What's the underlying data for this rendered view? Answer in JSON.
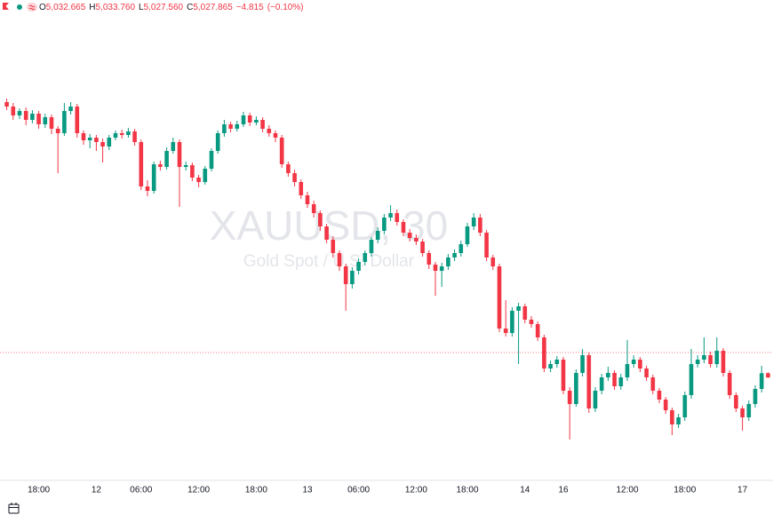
{
  "header": {
    "open_label": "O",
    "open": "5,032.665",
    "high_label": "H",
    "high": "5,033.760",
    "low_label": "L",
    "low": "5,027.560",
    "close_label": "C",
    "close": "5,027.865",
    "change": "−4.815",
    "change_pct": "(−0.10%)"
  },
  "watermark": {
    "symbol": "XAUUSD, 30",
    "description": "Gold Spot / U.S. Dollar"
  },
  "chart_data": {
    "type": "candlestick",
    "up_color": "#089981",
    "down_color": "#f23645",
    "ylim": [
      4913,
      5453
    ],
    "reference_line": 5056,
    "reference_color": "#f23645",
    "categories": [
      null,
      null,
      null,
      null,
      null,
      "18:00",
      null,
      null,
      null,
      null,
      null,
      null,
      null,
      null,
      "12",
      null,
      null,
      null,
      null,
      null,
      null,
      "06:00",
      null,
      null,
      null,
      null,
      null,
      null,
      null,
      null,
      "12:00",
      null,
      null,
      null,
      null,
      null,
      null,
      null,
      null,
      "18:00",
      null,
      null,
      null,
      null,
      null,
      null,
      null,
      "13",
      null,
      null,
      null,
      null,
      null,
      null,
      null,
      "06:00",
      null,
      null,
      null,
      null,
      null,
      null,
      null,
      null,
      "12:00",
      null,
      null,
      null,
      null,
      null,
      null,
      null,
      "18:00",
      null,
      null,
      null,
      null,
      null,
      null,
      null,
      null,
      "14",
      null,
      null,
      null,
      null,
      null,
      "16",
      null,
      null,
      null,
      null,
      null,
      null,
      null,
      null,
      null,
      "12:00",
      null,
      null,
      null,
      null,
      null,
      null,
      null,
      null,
      "18:00",
      null,
      null,
      null,
      null,
      null,
      null,
      null,
      null,
      "17",
      null,
      null,
      null,
      null
    ],
    "open": [
      5338,
      5333,
      5323,
      5328,
      5318,
      5325,
      5313,
      5321,
      5308,
      5303,
      5328,
      5333,
      5303,
      5295,
      5298,
      5293,
      5288,
      5298,
      5303,
      5301,
      5305,
      5293,
      5243,
      5238,
      5268,
      5265,
      5283,
      5293,
      5265,
      5267,
      5253,
      5248,
      5263,
      5283,
      5303,
      5313,
      5308,
      5313,
      5323,
      5315,
      5318,
      5308,
      5303,
      5298,
      5268,
      5258,
      5248,
      5233,
      5223,
      5213,
      5198,
      5183,
      5168,
      5153,
      5133,
      5148,
      5158,
      5168,
      5183,
      5193,
      5208,
      5213,
      5203,
      5191,
      5185,
      5181,
      5168,
      5155,
      5148,
      5153,
      5163,
      5168,
      5178,
      5198,
      5208,
      5191,
      5163,
      5153,
      5083,
      5078,
      5103,
      5108,
      5093,
      5088,
      5073,
      5038,
      5043,
      5048,
      5013,
      4998,
      5033,
      5053,
      4993,
      5013,
      5028,
      5033,
      5018,
      5028,
      5043,
      5048,
      5038,
      5028,
      5013,
      5003,
      4991,
      4975,
      4983,
      5008,
      5043,
      5048,
      5053,
      5043,
      5058,
      5033,
      5008,
      4993,
      4983,
      4998,
      5015,
      5032.665
    ],
    "high": [
      5342,
      5337,
      5331,
      5332,
      5329,
      5328,
      5325,
      5324,
      5311,
      5337,
      5338,
      5336,
      5306,
      5302,
      5301,
      5297,
      5301,
      5306,
      5307,
      5309,
      5308,
      5296,
      5250,
      5271,
      5272,
      5287,
      5298,
      5296,
      5271,
      5270,
      5256,
      5266,
      5286,
      5306,
      5318,
      5316,
      5317,
      5327,
      5326,
      5322,
      5321,
      5312,
      5306,
      5301,
      5271,
      5262,
      5251,
      5237,
      5227,
      5216,
      5201,
      5187,
      5171,
      5156,
      5152,
      5162,
      5171,
      5186,
      5197,
      5212,
      5222,
      5217,
      5206,
      5195,
      5189,
      5184,
      5171,
      5158,
      5157,
      5167,
      5172,
      5182,
      5202,
      5213,
      5212,
      5194,
      5166,
      5156,
      5115,
      5107,
      5112,
      5111,
      5097,
      5091,
      5076,
      5047,
      5052,
      5051,
      5017,
      5037,
      5060,
      5056,
      5017,
      5032,
      5040,
      5036,
      5032,
      5070,
      5053,
      5051,
      5041,
      5031,
      5016,
      5006,
      4994,
      4987,
      5012,
      5060,
      5053,
      5073,
      5057,
      5073,
      5061,
      5036,
      5011,
      4996,
      5002,
      5019,
      5041,
      5033.76
    ],
    "low": [
      5329,
      5318,
      5319,
      5312,
      5314,
      5308,
      5309,
      5302,
      5258,
      5300,
      5324,
      5298,
      5290,
      5286,
      5283,
      5270,
      5284,
      5295,
      5297,
      5298,
      5289,
      5239,
      5232,
      5235,
      5261,
      5262,
      5280,
      5220,
      5261,
      5249,
      5242,
      5245,
      5260,
      5280,
      5299,
      5304,
      5305,
      5310,
      5311,
      5312,
      5304,
      5299,
      5293,
      5264,
      5254,
      5243,
      5229,
      5219,
      5208,
      5193,
      5179,
      5163,
      5148,
      5103,
      5128,
      5144,
      5154,
      5164,
      5179,
      5189,
      5204,
      5199,
      5187,
      5181,
      5177,
      5164,
      5150,
      5120,
      5130,
      5149,
      5159,
      5164,
      5175,
      5194,
      5187,
      5159,
      5149,
      5079,
      5074,
      5074,
      5043,
      5089,
      5084,
      5069,
      5034,
      5034,
      5039,
      5009,
      4958,
      4995,
      5029,
      4988,
      4989,
      5009,
      5024,
      5014,
      5014,
      5024,
      5039,
      5034,
      5024,
      5009,
      4999,
      4987,
      4963,
      4971,
      4979,
      5004,
      5039,
      5044,
      5039,
      5039,
      5029,
      5004,
      4989,
      4968,
      4979,
      4994,
      5011,
      5027.56
    ],
    "close": [
      5333,
      5323,
      5328,
      5318,
      5325,
      5313,
      5321,
      5308,
      5303,
      5328,
      5333,
      5303,
      5295,
      5298,
      5293,
      5288,
      5298,
      5303,
      5301,
      5305,
      5293,
      5243,
      5238,
      5268,
      5265,
      5283,
      5293,
      5265,
      5267,
      5253,
      5248,
      5263,
      5283,
      5303,
      5313,
      5308,
      5313,
      5323,
      5315,
      5318,
      5308,
      5303,
      5298,
      5268,
      5258,
      5248,
      5233,
      5223,
      5213,
      5198,
      5183,
      5168,
      5153,
      5133,
      5148,
      5158,
      5168,
      5183,
      5193,
      5208,
      5213,
      5203,
      5191,
      5185,
      5181,
      5168,
      5155,
      5148,
      5153,
      5163,
      5168,
      5178,
      5198,
      5208,
      5191,
      5163,
      5153,
      5083,
      5078,
      5103,
      5108,
      5093,
      5088,
      5073,
      5038,
      5043,
      5048,
      5013,
      4998,
      5033,
      5053,
      4993,
      5013,
      5028,
      5033,
      5018,
      5028,
      5043,
      5048,
      5038,
      5028,
      5013,
      5003,
      4991,
      4975,
      4983,
      5008,
      5043,
      5048,
      5053,
      5043,
      5058,
      5033,
      5008,
      4993,
      4983,
      4998,
      5015,
      5032.665,
      5027.865
    ]
  }
}
